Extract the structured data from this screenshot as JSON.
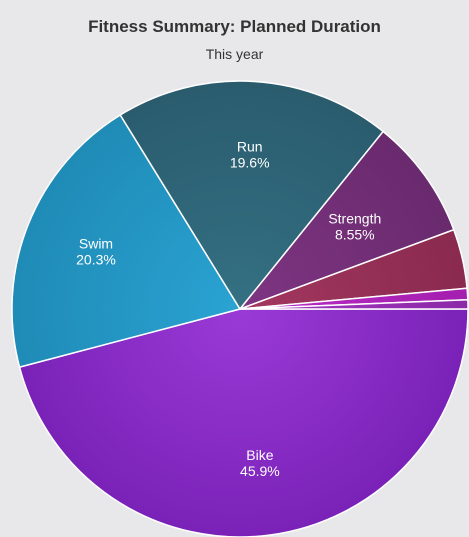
{
  "chart_data": {
    "type": "pie",
    "title": "Fitness Summary: Planned Duration",
    "subtitle": "This year",
    "slices": [
      {
        "label": "Bike",
        "value": 45.9,
        "value_text": "45.9%",
        "color": "#7a22b8",
        "color_light": "#9a3ad6",
        "show_label": true
      },
      {
        "label": "Swim",
        "value": 20.3,
        "value_text": "20.3%",
        "color": "#1f8bb6",
        "color_light": "#2aa3d3",
        "show_label": true
      },
      {
        "label": "Run",
        "value": 19.6,
        "value_text": "19.6%",
        "color": "#2a5c6e",
        "color_light": "#347083",
        "show_label": true
      },
      {
        "label": "Strength",
        "value": 8.55,
        "value_text": "8.55%",
        "color": "#6a2a6e",
        "color_light": "#7e3582",
        "show_label": true
      },
      {
        "label": "",
        "value": 4.2,
        "value_text": "",
        "color": "#8a2a4e",
        "color_light": "#a33760",
        "show_label": false
      },
      {
        "label": "",
        "value": 0.8,
        "value_text": "",
        "color": "#a31fae",
        "color_light": "#bb2bc6",
        "show_label": false
      },
      {
        "label": "",
        "value": 0.65,
        "value_text": "",
        "color": "#8c2aa8",
        "color_light": "#a436c2",
        "show_label": false
      }
    ]
  }
}
